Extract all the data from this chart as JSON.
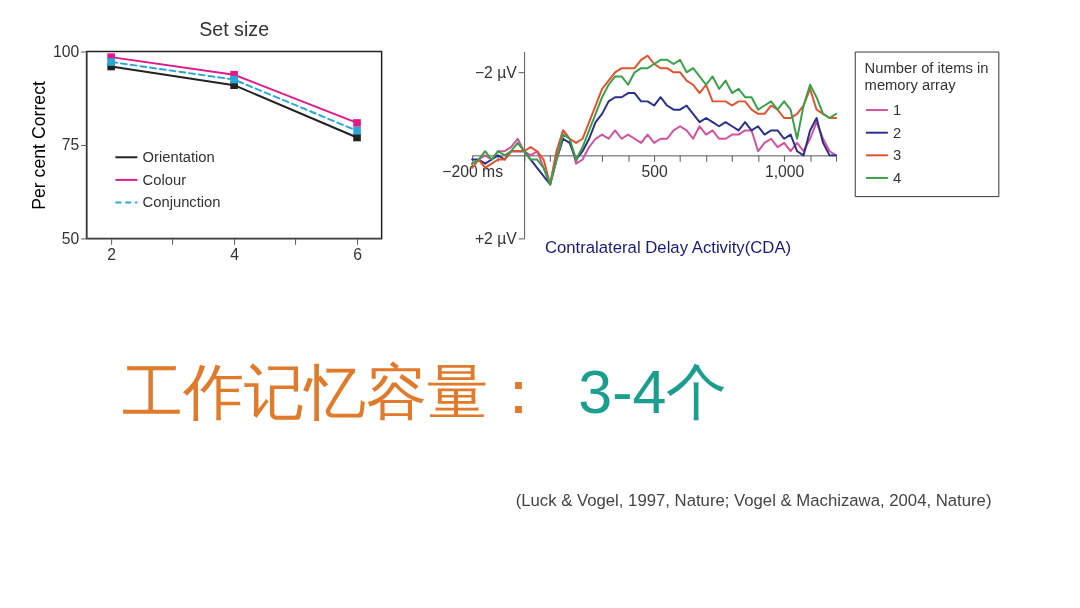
{
  "chart_data": [
    {
      "type": "line",
      "xlabel": "Set size",
      "ylabel": "Per cent Correct",
      "x": [
        2,
        4,
        6
      ],
      "series": [
        {
          "name": "Orientation",
          "color": "#222222",
          "line_style": "solid",
          "values": [
            96,
            91,
            77
          ]
        },
        {
          "name": "Colour",
          "color": "#e0198a",
          "line_style": "solid",
          "values": [
            98.5,
            93.8,
            80.9
          ]
        },
        {
          "name": "Conjunction",
          "color": "#29a8d8",
          "line_style": "dashed",
          "values": [
            97.2,
            92.5,
            78.8
          ]
        }
      ],
      "xlim": [
        1.6,
        6.4
      ],
      "ylim": [
        50,
        100
      ],
      "xticks": [
        2,
        {
          "value": 3,
          "label": null
        },
        4,
        {
          "value": 5,
          "label": null
        },
        6
      ],
      "yticks": [
        50,
        75,
        100
      ],
      "marker": "square",
      "legend": "bottom left",
      "grid": false
    },
    {
      "type": "line",
      "x": [
        -200,
        -175,
        -150,
        -125,
        -100,
        -75,
        -50,
        -25,
        0,
        25,
        50,
        75,
        100,
        125,
        150,
        175,
        200,
        225,
        250,
        275,
        300,
        325,
        350,
        375,
        400,
        425,
        450,
        475,
        500,
        525,
        550,
        575,
        600,
        625,
        650,
        675,
        700,
        725,
        750,
        775,
        800,
        825,
        850,
        875,
        900,
        925,
        950,
        975,
        1000,
        1025,
        1050,
        1075,
        1100,
        1125,
        1150,
        1175,
        1200
      ],
      "series": [
        {
          "name": "1",
          "color": "#d4509c",
          "values": [
            0.2,
            0.1,
            0.0,
            0.1,
            -0.1,
            -0.1,
            -0.2,
            -0.4,
            -0.1,
            0.0,
            -0.1,
            0.3,
            0.7,
            -0.1,
            -0.6,
            -0.4,
            0.2,
            0.1,
            -0.2,
            -0.4,
            -0.5,
            -0.4,
            -0.6,
            -0.4,
            -0.5,
            -0.4,
            -0.3,
            -0.5,
            -0.3,
            -0.4,
            -0.4,
            -0.6,
            -0.7,
            -0.6,
            -0.4,
            -0.7,
            -0.5,
            -0.6,
            -0.4,
            -0.4,
            -0.5,
            -0.5,
            -0.6,
            -0.6,
            -0.1,
            -0.3,
            -0.4,
            -0.2,
            -0.3,
            -0.1,
            -0.3,
            -0.1,
            -0.4,
            -0.8,
            -0.4,
            -0.1,
            0.0
          ]
        },
        {
          "name": "2",
          "color": "#2b2e8a",
          "values": [
            0.1,
            0.1,
            0.2,
            0.1,
            0.0,
            0.1,
            -0.1,
            -0.1,
            -0.1,
            0.1,
            0.3,
            0.5,
            0.7,
            0.1,
            -0.4,
            -0.3,
            0.1,
            -0.1,
            -0.4,
            -0.8,
            -1.0,
            -1.3,
            -1.4,
            -1.4,
            -1.5,
            -1.5,
            -1.3,
            -1.3,
            -1.2,
            -1.4,
            -1.2,
            -1.1,
            -1.1,
            -1.2,
            -1.0,
            -0.8,
            -0.9,
            -0.8,
            -0.7,
            -0.8,
            -0.7,
            -0.6,
            -0.8,
            -0.6,
            -0.7,
            -0.5,
            -0.6,
            -0.6,
            -0.4,
            -0.5,
            -0.1,
            0.0,
            -0.6,
            -0.9,
            -0.3,
            0.0,
            0.0
          ]
        },
        {
          "name": "3",
          "color": "#e2522f",
          "values": [
            0.3,
            0.1,
            0.3,
            0.2,
            0.1,
            0.1,
            -0.1,
            -0.1,
            -0.1,
            -0.2,
            -0.1,
            0.1,
            0.7,
            -0.1,
            -0.6,
            -0.4,
            -0.3,
            -0.4,
            -0.8,
            -1.2,
            -1.6,
            -1.8,
            -2.0,
            -2.1,
            -2.1,
            -2.1,
            -2.3,
            -2.4,
            -2.2,
            -2.1,
            -2.1,
            -2.0,
            -2.0,
            -1.8,
            -1.7,
            -1.5,
            -1.7,
            -1.3,
            -1.3,
            -1.3,
            -1.2,
            -1.3,
            -1.3,
            -1.1,
            -1.0,
            -1.0,
            -1.2,
            -1.1,
            -0.9,
            -0.9,
            -1.0,
            -1.2,
            -1.6,
            -1.1,
            -1.0,
            -0.9,
            -0.9
          ]
        },
        {
          "name": "4",
          "color": "#3aa048",
          "values": [
            0.2,
            0.1,
            -0.1,
            0.1,
            -0.1,
            0.0,
            -0.1,
            -0.3,
            -0.1,
            0.1,
            0.1,
            0.3,
            0.7,
            0.1,
            -0.5,
            -0.4,
            0.1,
            -0.2,
            -0.6,
            -1.0,
            -1.4,
            -1.7,
            -1.9,
            -1.9,
            -1.7,
            -2.0,
            -2.1,
            -2.1,
            -2.2,
            -2.3,
            -2.3,
            -2.2,
            -2.3,
            -2.0,
            -2.1,
            -1.9,
            -1.7,
            -1.9,
            -1.6,
            -1.8,
            -1.5,
            -1.6,
            -1.4,
            -1.4,
            -1.1,
            -1.2,
            -1.3,
            -1.1,
            -1.3,
            -1.1,
            -0.4,
            -1.2,
            -1.7,
            -1.4,
            -1.0,
            -0.9,
            -1.0
          ]
        }
      ],
      "xlim": [
        -200,
        1200
      ],
      "ylim": [
        2,
        -2.5
      ],
      "xticks": [
        {
          "value": -200,
          "label": "−200 ms"
        },
        {
          "value": -100,
          "label": null
        },
        {
          "value": 0,
          "label": null
        },
        {
          "value": 100,
          "label": null
        },
        {
          "value": 200,
          "label": null
        },
        {
          "value": 300,
          "label": null
        },
        {
          "value": 400,
          "label": null
        },
        500,
        {
          "value": 600,
          "label": null
        },
        {
          "value": 700,
          "label": null
        },
        {
          "value": 800,
          "label": null
        },
        {
          "value": 900,
          "label": null
        },
        {
          "value": 1000,
          "label": "1,000"
        },
        {
          "value": 1100,
          "label": null
        },
        {
          "value": 1200,
          "label": null
        }
      ],
      "yticks": [
        {
          "value": -2,
          "label": "−2 µV"
        },
        {
          "value": 2,
          "label": "+2 µV"
        }
      ],
      "legend_title": "Number of items in memory array",
      "legend": "right",
      "grid": false,
      "annotations": [
        "Contralateral Delay Activity(CDA)"
      ]
    },
    {
      "type": "other",
      "annotations": [
        "工作记忆容量：",
        "3-4个",
        "(Luck & Vogel, 1997, Nature; Vogel & Machizawa, 2004, Nature)"
      ]
    }
  ]
}
